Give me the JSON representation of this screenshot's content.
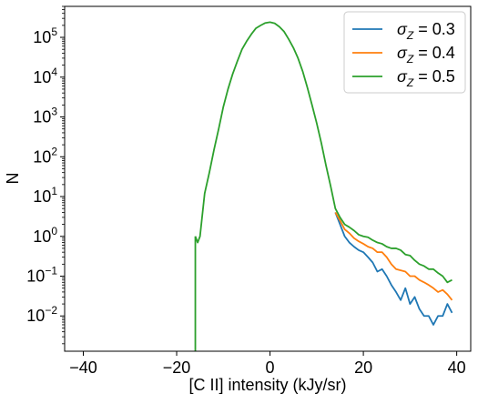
{
  "chart_data": {
    "type": "line",
    "title": "",
    "xlabel": "[C II] intensity (kJy/sr)",
    "ylabel": "N",
    "x_scale": "linear",
    "y_scale": "log",
    "xlim": [
      -44,
      43
    ],
    "ylim": [
      0.0013,
      600000
    ],
    "grid": false,
    "legend_position": "upper right",
    "x_ticks": [
      {
        "value": -40,
        "label": "−40"
      },
      {
        "value": -20,
        "label": "−20"
      },
      {
        "value": 0,
        "label": "0"
      },
      {
        "value": 20,
        "label": "20"
      },
      {
        "value": 40,
        "label": "40"
      }
    ],
    "y_ticks": [
      {
        "exp": -2,
        "base": "10",
        "sup": "−2"
      },
      {
        "exp": -1,
        "base": "10",
        "sup": "−1"
      },
      {
        "exp": 0,
        "base": "10",
        "sup": "0"
      },
      {
        "exp": 1,
        "base": "10",
        "sup": "1"
      },
      {
        "exp": 2,
        "base": "10",
        "sup": "2"
      },
      {
        "exp": 3,
        "base": "10",
        "sup": "3"
      },
      {
        "exp": 4,
        "base": "10",
        "sup": "4"
      },
      {
        "exp": 5,
        "base": "10",
        "sup": "5"
      }
    ],
    "series": [
      {
        "name": "σ_Z = 0.3",
        "legend_symbol": "σ",
        "legend_sub": "Z",
        "legend_value": " = 0.3",
        "color": "#1f77b4",
        "x": [
          14,
          15,
          16,
          17,
          18,
          19,
          20,
          21,
          22,
          23,
          24,
          25,
          26,
          27,
          28,
          29,
          30,
          31,
          32,
          33,
          34,
          35,
          36,
          37,
          38,
          39
        ],
        "y": [
          4.0,
          2.0,
          1.0,
          0.7,
          0.55,
          0.45,
          0.4,
          0.3,
          0.22,
          0.13,
          0.15,
          0.1,
          0.06,
          0.04,
          0.025,
          0.05,
          0.02,
          0.03,
          0.015,
          0.01,
          0.01,
          0.006,
          0.01,
          0.01,
          0.02,
          0.012
        ]
      },
      {
        "name": "σ_Z = 0.4",
        "legend_symbol": "σ",
        "legend_sub": "Z",
        "legend_value": " = 0.4",
        "color": "#ff7f0e",
        "x": [
          14,
          15,
          16,
          17,
          18,
          19,
          20,
          21,
          22,
          23,
          24,
          25,
          26,
          27,
          28,
          29,
          30,
          31,
          32,
          33,
          34,
          35,
          36,
          37,
          38,
          39
        ],
        "y": [
          4.0,
          2.5,
          1.5,
          1.2,
          0.9,
          0.75,
          0.65,
          0.55,
          0.5,
          0.4,
          0.4,
          0.3,
          0.2,
          0.15,
          0.14,
          0.13,
          0.1,
          0.1,
          0.08,
          0.07,
          0.06,
          0.05,
          0.04,
          0.045,
          0.035,
          0.025
        ]
      },
      {
        "name": "σ_Z = 0.5",
        "legend_symbol": "σ",
        "legend_sub": "Z",
        "legend_value": " = 0.5",
        "color": "#2ca02c",
        "x": [
          -16,
          -15.5,
          -15,
          -14,
          -13,
          -12,
          -11,
          -10,
          -9,
          -8,
          -7,
          -6,
          -5,
          -4,
          -3,
          -2,
          -1,
          0,
          1,
          2,
          3,
          4,
          5,
          6,
          7,
          8,
          9,
          10,
          11,
          12,
          13,
          14,
          15,
          16,
          17,
          18,
          19,
          20,
          21,
          22,
          23,
          24,
          25,
          26,
          27,
          28,
          29,
          30,
          31,
          32,
          33,
          34,
          35,
          36,
          37,
          38,
          39
        ],
        "y": [
          1.0,
          0.7,
          1.0,
          12,
          40,
          150,
          500,
          1800,
          5000,
          12000,
          25000,
          50000,
          80000,
          120000,
          170000,
          200000,
          230000,
          240000,
          225000,
          185000,
          140000,
          90000,
          55000,
          30000,
          14000,
          5500,
          2000,
          700,
          220,
          60,
          18,
          5.0,
          3.0,
          2.0,
          1.7,
          1.4,
          1.1,
          1.0,
          0.95,
          0.8,
          0.7,
          0.65,
          0.55,
          0.5,
          0.5,
          0.45,
          0.35,
          0.33,
          0.25,
          0.2,
          0.18,
          0.15,
          0.15,
          0.12,
          0.1,
          0.07,
          0.08
        ]
      }
    ],
    "shared_drop": {
      "x": -16,
      "y": 0.0013
    }
  }
}
